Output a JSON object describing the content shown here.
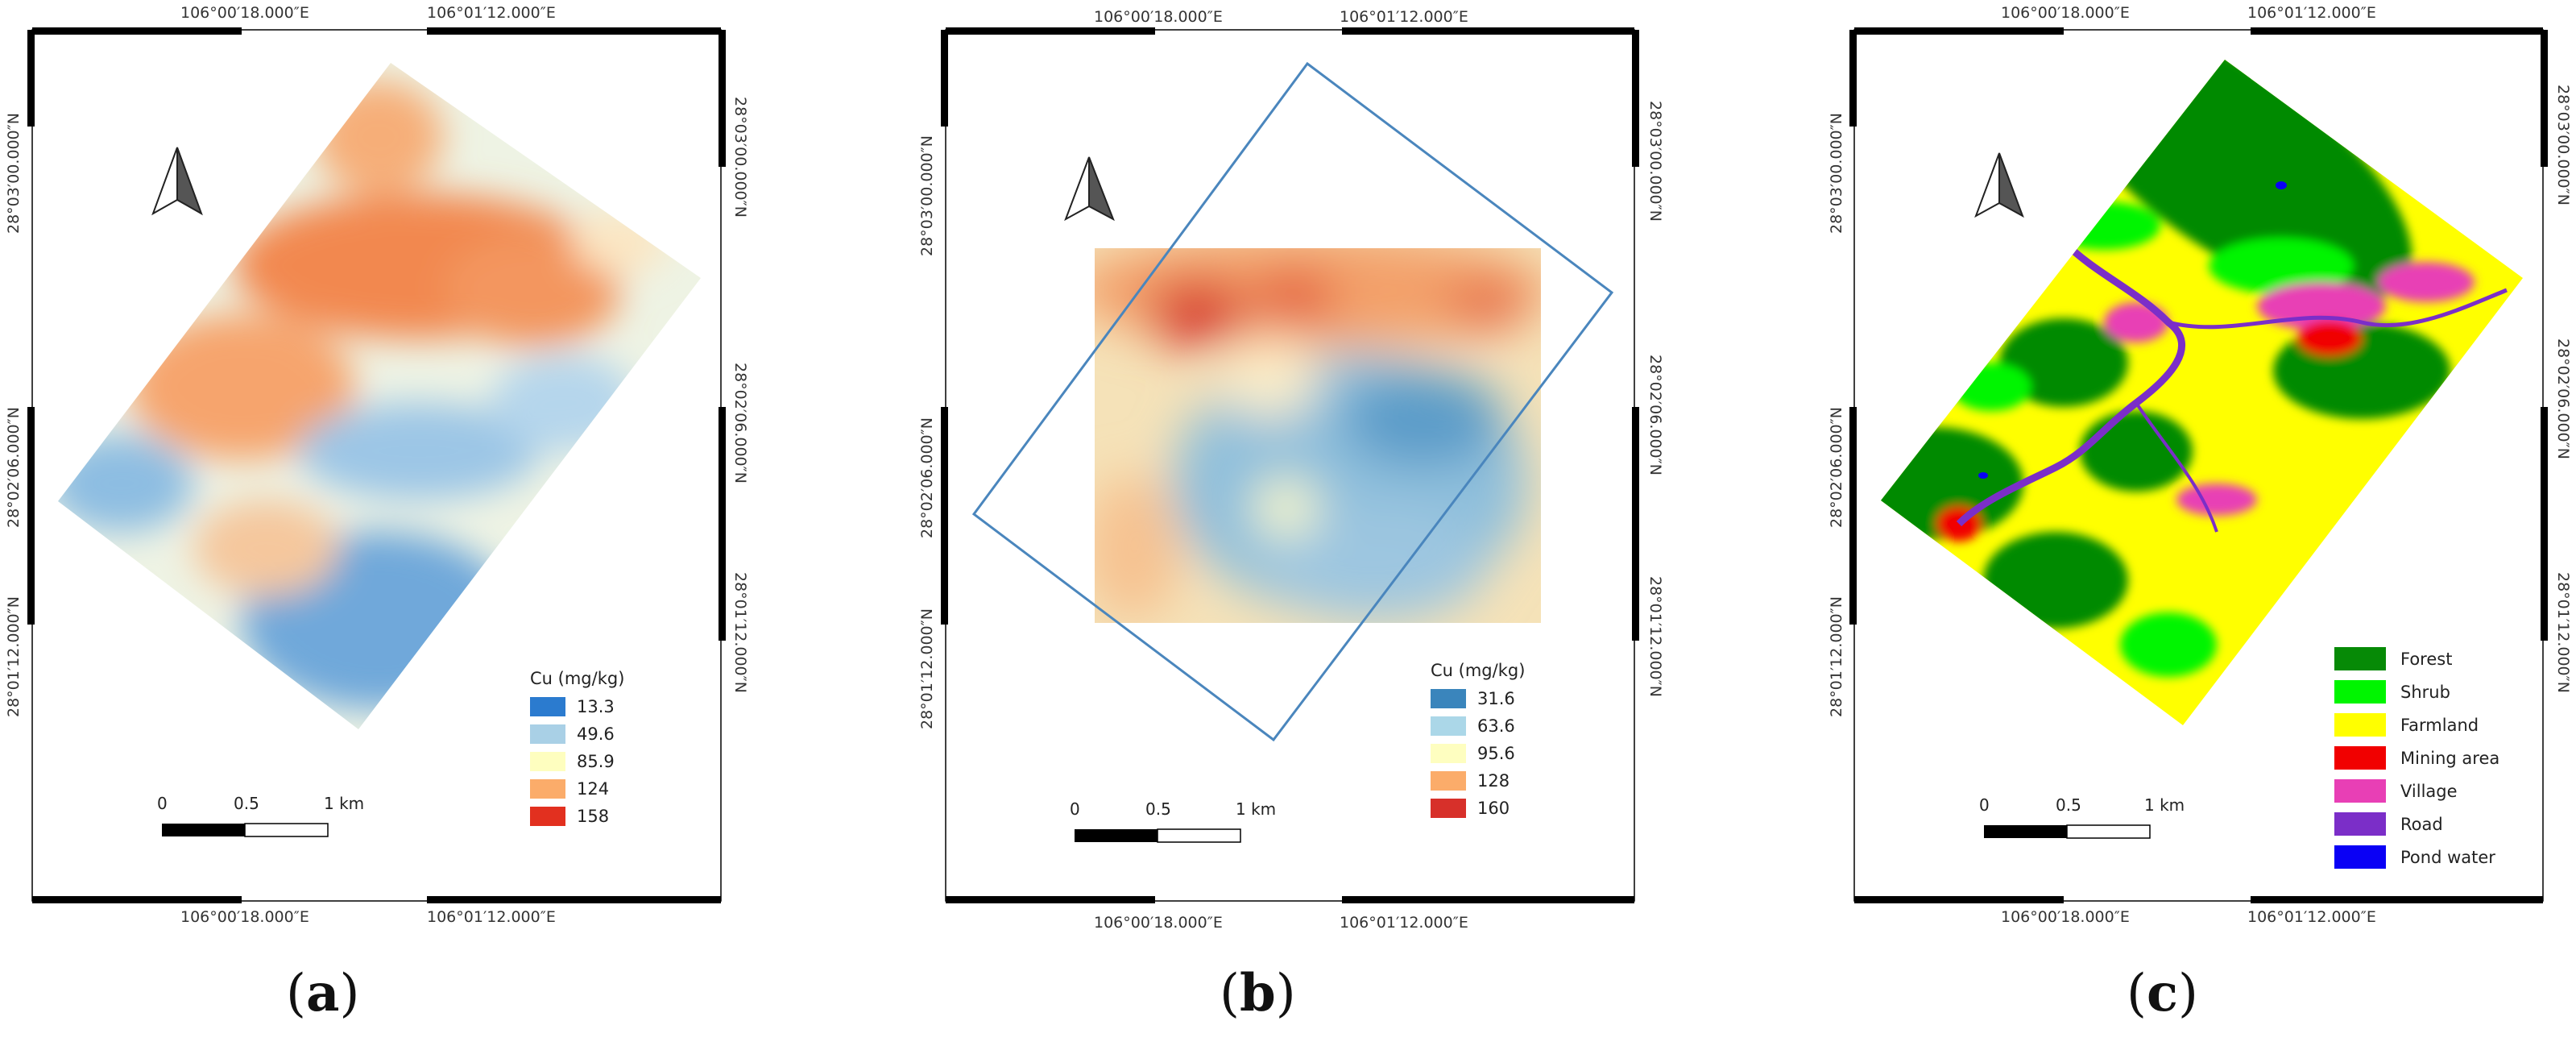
{
  "panels": [
    {
      "id": "a",
      "caption_letter": "a",
      "coords": {
        "lon_left": "106°00′18.000″E",
        "lon_right": "106°01′12.000″E",
        "lat_top": "28°03′00.000″N",
        "lat_mid": "28°02′06.000″N",
        "lat_bottom": "28°01′12.000″N"
      },
      "legend": {
        "title": "Cu (mg/kg)",
        "items": [
          {
            "label": "13.3",
            "color": "#2b7bcf"
          },
          {
            "label": "49.6",
            "color": "#a9d0e6"
          },
          {
            "label": "85.9",
            "color": "#fefebf"
          },
          {
            "label": "124",
            "color": "#fbac6a"
          },
          {
            "label": "158",
            "color": "#e2301f"
          }
        ]
      },
      "scalebar": {
        "labels": [
          "0",
          "0.5",
          "1 km"
        ]
      }
    },
    {
      "id": "b",
      "caption_letter": "b",
      "coords": {
        "lon_left": "106°00′18.000″E",
        "lon_right": "106°01′12.000″E",
        "lat_top": "28°03′00.000″N",
        "lat_mid": "28°02′06.000″N",
        "lat_bottom": "28°01′12.000″N"
      },
      "legend": {
        "title": "Cu (mg/kg)",
        "items": [
          {
            "label": "31.6",
            "color": "#3a85bc"
          },
          {
            "label": "63.6",
            "color": "#abd7e8"
          },
          {
            "label": "95.6",
            "color": "#fefec0"
          },
          {
            "label": "128",
            "color": "#fbac6a"
          },
          {
            "label": "160",
            "color": "#d7302a"
          }
        ]
      },
      "scalebar": {
        "labels": [
          "0",
          "0.5",
          "1 km"
        ]
      }
    },
    {
      "id": "c",
      "caption_letter": "c",
      "coords": {
        "lon_left": "106°00′18.000″E",
        "lon_right": "106°01′12.000″E",
        "lat_top": "28°03′00.000″N",
        "lat_mid": "28°02′06.000″N",
        "lat_bottom": "28°01′12.000″N"
      },
      "legend": {
        "title": "",
        "items": [
          {
            "label": "Forest",
            "color": "#068a06"
          },
          {
            "label": "Shrub",
            "color": "#00f500"
          },
          {
            "label": "Farmland",
            "color": "#ffff00"
          },
          {
            "label": "Mining area",
            "color": "#f10000"
          },
          {
            "label": "Village",
            "color": "#e83fb5"
          },
          {
            "label": "Road",
            "color": "#7b2ec8"
          },
          {
            "label": "Pond water",
            "color": "#0a00f5"
          }
        ]
      },
      "scalebar": {
        "labels": [
          "0",
          "0.5",
          "1 km"
        ]
      }
    }
  ]
}
